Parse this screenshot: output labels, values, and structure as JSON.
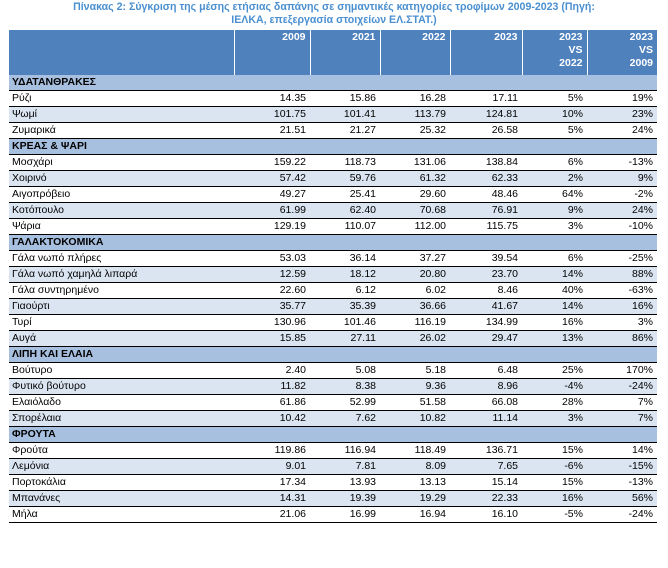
{
  "caption": {
    "line1": "Πίνακας 2: Σύγκριση της μέσης ετήσιας δαπάνης σε σημαντικές κατηγορίες τροφίμων 2009-2023 (Πηγή:",
    "line2": "ΙΕΛΚΑ, επεξεργασία στοιχείων ΕΛ.ΣΤΑΤ.)"
  },
  "headers": {
    "y2009": "2009",
    "y2021": "2021",
    "y2022": "2022",
    "y2023": "2023",
    "cmp1": [
      "2023",
      "VS",
      "2022"
    ],
    "cmp2": [
      "2023",
      "VS",
      "2009"
    ]
  },
  "sections": [
    {
      "title": "ΥΔΑΤΑΝΘΡΑΚΕΣ",
      "rows": [
        {
          "name": "Ρύζι",
          "v2009": "14.35",
          "v2021": "15.86",
          "v2022": "16.28",
          "v2023": "17.11",
          "vs2022": "5%",
          "vs2009": "19%"
        },
        {
          "name": "Ψωμί",
          "v2009": "101.75",
          "v2021": "101.41",
          "v2022": "113.79",
          "v2023": "124.81",
          "vs2022": "10%",
          "vs2009": "23%"
        },
        {
          "name": "Ζυμαρικά",
          "v2009": "21.51",
          "v2021": "21.27",
          "v2022": "25.32",
          "v2023": "26.58",
          "vs2022": "5%",
          "vs2009": "24%"
        }
      ]
    },
    {
      "title": "ΚΡΕΑΣ & ΨΑΡΙ",
      "rows": [
        {
          "name": "Μοσχάρι",
          "v2009": "159.22",
          "v2021": "118.73",
          "v2022": "131.06",
          "v2023": "138.84",
          "vs2022": "6%",
          "vs2009": "-13%"
        },
        {
          "name": "Χοιρινό",
          "v2009": "57.42",
          "v2021": "59.76",
          "v2022": "61.32",
          "v2023": "62.33",
          "vs2022": "2%",
          "vs2009": "9%"
        },
        {
          "name": "Αιγοπρόβειο",
          "v2009": "49.27",
          "v2021": "25.41",
          "v2022": "29.60",
          "v2023": "48.46",
          "vs2022": "64%",
          "vs2009": "-2%"
        },
        {
          "name": "Κοτόπουλο",
          "v2009": "61.99",
          "v2021": "62.40",
          "v2022": "70.68",
          "v2023": "76.91",
          "vs2022": "9%",
          "vs2009": "24%"
        },
        {
          "name": "Ψάρια",
          "v2009": "129.19",
          "v2021": "110.07",
          "v2022": "112.00",
          "v2023": "115.75",
          "vs2022": "3%",
          "vs2009": "-10%"
        }
      ]
    },
    {
      "title": "ΓΑΛΑΚΤΟΚΟΜΙΚΑ",
      "rows": [
        {
          "name": "Γάλα νωπό πλήρες",
          "v2009": "53.03",
          "v2021": "36.14",
          "v2022": "37.27",
          "v2023": "39.54",
          "vs2022": "6%",
          "vs2009": "-25%"
        },
        {
          "name": "Γάλα νωπό χαμηλά λιπαρά",
          "v2009": "12.59",
          "v2021": "18.12",
          "v2022": "20.80",
          "v2023": "23.70",
          "vs2022": "14%",
          "vs2009": "88%"
        },
        {
          "name": "Γάλα συντηρημένο",
          "v2009": "22.60",
          "v2021": "6.12",
          "v2022": "6.02",
          "v2023": "8.46",
          "vs2022": "40%",
          "vs2009": "-63%"
        },
        {
          "name": "Γιαούρτι",
          "v2009": "35.77",
          "v2021": "35.39",
          "v2022": "36.66",
          "v2023": "41.67",
          "vs2022": "14%",
          "vs2009": "16%"
        },
        {
          "name": "Τυρί",
          "v2009": "130.96",
          "v2021": "101.46",
          "v2022": "116.19",
          "v2023": "134.99",
          "vs2022": "16%",
          "vs2009": "3%"
        },
        {
          "name": "Αυγά",
          "v2009": "15.85",
          "v2021": "27.11",
          "v2022": "26.02",
          "v2023": "29.47",
          "vs2022": "13%",
          "vs2009": "86%"
        }
      ]
    },
    {
      "title": "ΛΙΠΗ ΚΑΙ ΕΛΑΙΑ",
      "rows": [
        {
          "name": "Βούτυρο",
          "v2009": "2.40",
          "v2021": "5.08",
          "v2022": "5.18",
          "v2023": "6.48",
          "vs2022": "25%",
          "vs2009": "170%"
        },
        {
          "name": "Φυτικό βούτυρο",
          "v2009": "11.82",
          "v2021": "8.38",
          "v2022": "9.36",
          "v2023": "8.96",
          "vs2022": "-4%",
          "vs2009": "-24%"
        },
        {
          "name": "Ελαιόλαδο",
          "v2009": "61.86",
          "v2021": "52.99",
          "v2022": "51.58",
          "v2023": "66.08",
          "vs2022": "28%",
          "vs2009": "7%"
        },
        {
          "name": "Σπορέλαια",
          "v2009": "10.42",
          "v2021": "7.62",
          "v2022": "10.82",
          "v2023": "11.14",
          "vs2022": "3%",
          "vs2009": "7%"
        }
      ]
    },
    {
      "title": "ΦΡΟΥΤΑ",
      "rows": [
        {
          "name": "Φρούτα",
          "v2009": "119.86",
          "v2021": "116.94",
          "v2022": "118.49",
          "v2023": "136.71",
          "vs2022": "15%",
          "vs2009": "14%"
        },
        {
          "name": "Λεμόνια",
          "v2009": "9.01",
          "v2021": "7.81",
          "v2022": "8.09",
          "v2023": "7.65",
          "vs2022": "-6%",
          "vs2009": "-15%"
        },
        {
          "name": "Πορτοκάλια",
          "v2009": "17.34",
          "v2021": "13.93",
          "v2022": "13.13",
          "v2023": "15.14",
          "vs2022": "15%",
          "vs2009": "-13%"
        },
        {
          "name": "Μπανάνες",
          "v2009": "14.31",
          "v2021": "19.39",
          "v2022": "19.29",
          "v2023": "22.33",
          "vs2022": "16%",
          "vs2009": "56%"
        },
        {
          "name": "Μήλα",
          "v2009": "21.06",
          "v2021": "16.99",
          "v2022": "16.94",
          "v2023": "16.10",
          "vs2022": "-5%",
          "vs2009": "-24%"
        }
      ]
    }
  ]
}
